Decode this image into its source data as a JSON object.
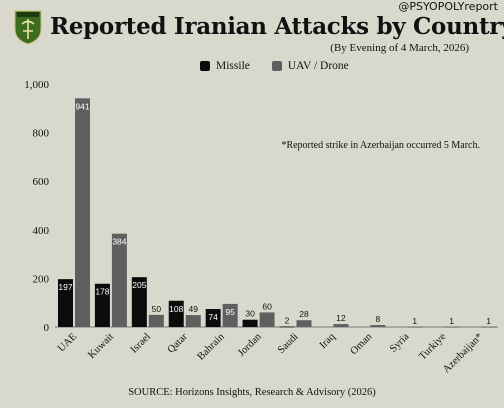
{
  "header": {
    "handle": "@PSYOPOLYreport",
    "title": "Reported Iranian Attacks by Country",
    "subtitle": "(By Evening of 4 March, 2026)",
    "logo_text": "PSYOPOLY"
  },
  "legend": {
    "missile_label": "Missile",
    "uav_label": "UAV / Drone"
  },
  "annotation": "*Reported strike in Azerbaijan occurred 5 March.",
  "source": "SOURCE: Horizons Insights, Research & Advisory (2026)",
  "colors": {
    "background": "#d9d8cc",
    "missile": "#0b0b0b",
    "uav": "#5f5f5f",
    "axis": "#777777",
    "logo_green": "#3d6b1f"
  },
  "chart_data": {
    "type": "bar",
    "categories": [
      "UAE",
      "Kuwait",
      "Israel",
      "Qatar",
      "Bahrain",
      "Jordan",
      "Saudi",
      "Iraq",
      "Oman",
      "Syria",
      "Turkiye",
      "Azerbaijan*"
    ],
    "series": [
      {
        "name": "Missile",
        "values": [
          197,
          178,
          205,
          108,
          74,
          30,
          2,
          null,
          null,
          null,
          null,
          null
        ],
        "labels": [
          "197",
          "178",
          "205",
          "108",
          "74",
          "30",
          "2",
          "",
          "",
          "",
          "",
          ""
        ]
      },
      {
        "name": "UAV / Drone",
        "values": [
          941,
          384,
          50,
          49,
          95,
          60,
          28,
          12,
          8,
          1,
          1,
          1
        ],
        "labels": [
          "941",
          "384",
          "50",
          "49",
          "95",
          "60",
          "28",
          "12",
          "8",
          "1",
          "1",
          "1"
        ]
      }
    ],
    "yticks": [
      0,
      200,
      400,
      600,
      800,
      "1,000"
    ],
    "ylim": [
      0,
      1000
    ],
    "xlabel": "",
    "ylabel": "",
    "grid": false,
    "legend_position": "top"
  }
}
